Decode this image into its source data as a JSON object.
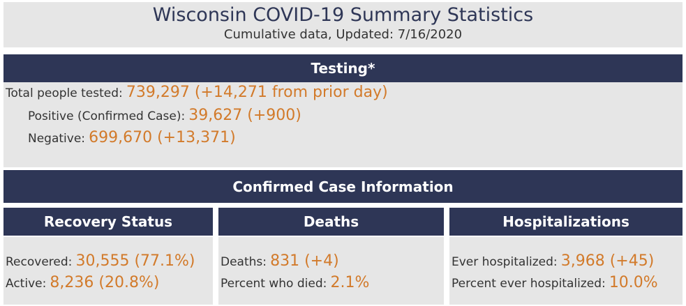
{
  "header": {
    "title": "Wisconsin COVID-19 Summary Statistics",
    "subtitle": "Cumulative data, Updated: 7/16/2020"
  },
  "testing": {
    "title": "Testing*",
    "rows": [
      {
        "label": "Total people tested:",
        "value": "739,297 (+14,271 from prior day)"
      },
      {
        "label": "Positive (Confirmed Case):",
        "value": "39,627 (+900)"
      },
      {
        "label": "Negative:",
        "value": "699,670 (+13,371)"
      }
    ]
  },
  "confirmed": {
    "title": "Confirmed Case Information",
    "panels": [
      {
        "title": "Recovery Status",
        "rows": [
          {
            "label": "Recovered:",
            "value": "30,555 (77.1%)"
          },
          {
            "label": "Active:",
            "value": "8,236 (20.8%)"
          }
        ]
      },
      {
        "title": "Deaths",
        "rows": [
          {
            "label": "Deaths:",
            "value": "831 (+4)"
          },
          {
            "label": "Percent who died:",
            "value": "2.1%"
          }
        ]
      },
      {
        "title": "Hospitalizations",
        "rows": [
          {
            "label": "Ever hospitalized:",
            "value": "3,968 (+45)"
          },
          {
            "label": "Percent ever hospitalized:",
            "value": "10.0%"
          }
        ]
      }
    ]
  }
}
